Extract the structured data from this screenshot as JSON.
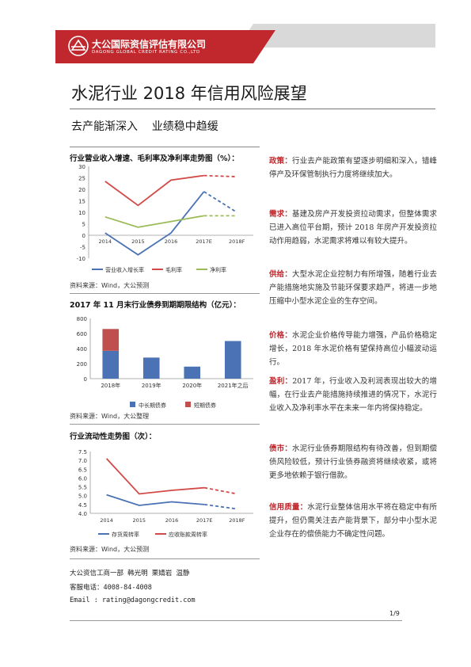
{
  "header": {
    "company_cn": "大公国际资信评估有限公司",
    "company_en": "DAGONG GLOBAL CREDIT RATING CO.,LTD",
    "brand_color": "#c0282d"
  },
  "doc": {
    "title": "水泥行业 2018 年信用风险展望",
    "subtitle": "去产能渐深入    业绩稳中趋缓"
  },
  "charts": {
    "c1": {
      "heading": "行业营业收入增速、毛利率及净利率走势图（%）：",
      "source": "资料来源：Wind，大公预测"
    },
    "c2": {
      "heading": "2017 年 11 月末行业债券到期期限结构（亿元）：",
      "source": "资料来源：Wind，大公整理"
    },
    "c3": {
      "heading": "行业流动性走势图（次）：",
      "source": "资料来源：Wind，大公预测"
    }
  },
  "chart_data": [
    {
      "type": "line",
      "title": "行业营业收入增速、毛利率及净利率走势图（%）",
      "categories": [
        "2014",
        "2015",
        "2016",
        "2017E",
        "2018F"
      ],
      "ylim": [
        -10,
        30
      ],
      "yticks": [
        "30",
        "25",
        "20",
        "15",
        "10",
        "5",
        "0",
        "-5",
        "-10"
      ],
      "series": [
        {
          "name": "营业收入增长率",
          "color": "#4a72b4",
          "values": [
            1,
            -8.5,
            1,
            19,
            10
          ]
        },
        {
          "name": "毛利率",
          "color": "#d24a47",
          "values": [
            23.5,
            13,
            24,
            26,
            25.5
          ]
        },
        {
          "name": "净利率",
          "color": "#9bbb59",
          "values": [
            8,
            3.5,
            6,
            8.5,
            8.5
          ]
        }
      ],
      "forecast_dashed_from": "2017E",
      "legend": "bottom"
    },
    {
      "type": "bar",
      "title": "2017 年 11 月末行业债券到期期限结构（亿元）",
      "categories": [
        "2018年",
        "2019年",
        "2020年",
        "2021年之后"
      ],
      "ylim": [
        0,
        800
      ],
      "yticks": [
        "800",
        "600",
        "400",
        "200",
        "0"
      ],
      "stacked": true,
      "series": [
        {
          "name": "中长期债券",
          "color": "#4a72b4",
          "values": [
            370,
            280,
            160,
            500
          ]
        },
        {
          "name": "短期债券",
          "color": "#c0504d",
          "values": [
            290,
            0,
            0,
            0
          ]
        }
      ],
      "legend": "bottom"
    },
    {
      "type": "line",
      "title": "行业流动性走势图（次）",
      "categories": [
        "2014",
        "2015",
        "2016",
        "2017E",
        "2018F"
      ],
      "ylim": [
        4.0,
        7.5
      ],
      "yticks": [
        "7.5",
        "7.0",
        "6.5",
        "6.0",
        "5.5",
        "5.0",
        "4.5",
        "4.0"
      ],
      "series": [
        {
          "name": "存货周转率",
          "color": "#4a72b4",
          "values": [
            5.05,
            4.45,
            4.65,
            4.5,
            4.25
          ]
        },
        {
          "name": "应收账款周转率",
          "color": "#d24a47",
          "values": [
            7.1,
            5.1,
            5.3,
            5.45,
            5.1
          ]
        }
      ],
      "forecast_dashed_from": "2017E",
      "legend": "bottom"
    }
  ],
  "sections": [
    {
      "label": "政策：",
      "text": "行业去产能政策有望逐步明细和深入，错峰停产及环保管制执行力度将继续加大。"
    },
    {
      "label": "需求：",
      "text": "基建及房产开发投资拉动需求，但整体需求已进入高位平台期，预计 2018 年房产开发投资拉动作用趋弱，水泥需求将难以有较大提升。"
    },
    {
      "label": "供给：",
      "text": "大型水泥企业控制力有所增强，随着行业去产能措施地实施及节能环保要求趋严，将进一步地压缩中小型水泥企业的生存空间。"
    },
    {
      "label": "价格：",
      "text": "水泥企业价格传导能力增强，产品价格稳定增长，2018 年水泥价格有望保持高位小幅波动运行。"
    },
    {
      "label": "盈利：",
      "text": "2017 年，行业收入及利润表现出较大的增幅，在行业去产能措施持续推进的情况下，水泥行业收入及净利率水平在未来一年内将保持稳定。"
    },
    {
      "label": "债市：",
      "text": "水泥行业债券期限结构有待改善，但到期偿债风险较低，预计行业债券融资将继续收紧，或将更多地依赖于银行借款。"
    },
    {
      "label": "信用质量：",
      "text": "水泥行业整体信用水平将在稳定中有所提升，但仍需关注去产能背景下，部分中小型水泥企业存在的偿债能力不确定性问题。"
    }
  ],
  "contacts": {
    "team": "大公资信工商一部   韩光明   栗婧岩   温静",
    "phone": "客服电话：4008-84-4008",
    "email": "Email    : rating@dagongcredit.com"
  },
  "page": "1/9"
}
